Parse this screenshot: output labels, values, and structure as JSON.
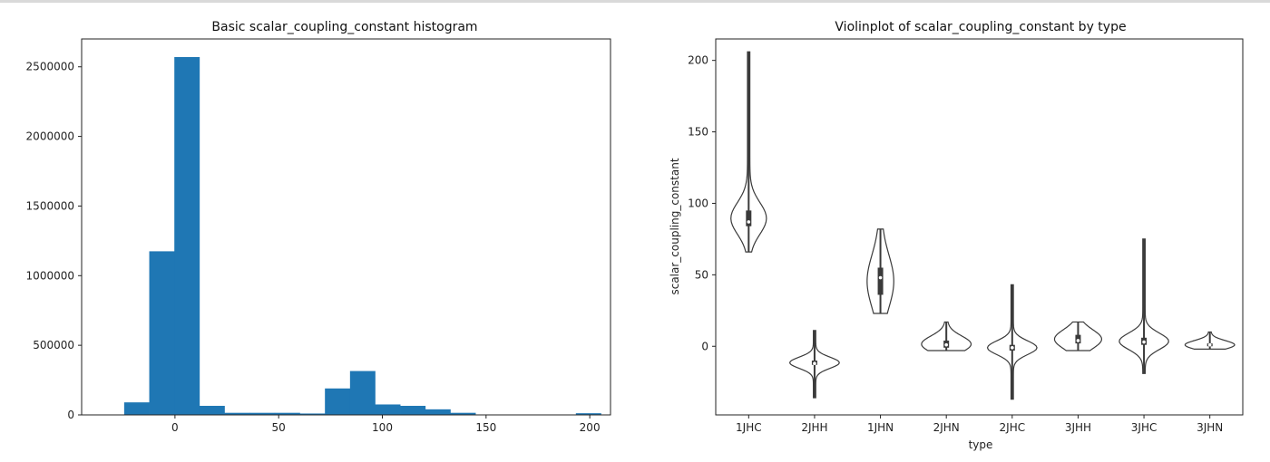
{
  "chart_data": [
    {
      "type": "bar",
      "title": "Basic scalar_coupling_constant histogram",
      "xlabel": "",
      "ylabel": "",
      "xlim": [
        -45,
        210
      ],
      "ylim": [
        0,
        2700000
      ],
      "xticks": [
        0,
        50,
        100,
        150,
        200
      ],
      "xtick_labels": [
        "0",
        "50",
        "100",
        "150",
        "200"
      ],
      "yticks": [
        0,
        500000,
        1000000,
        1500000,
        2000000,
        2500000
      ],
      "ytick_labels": [
        "0",
        "500000",
        "1000000",
        "1500000",
        "2000000",
        "2500000"
      ],
      "color": "#1f77b4",
      "bin_edges": [
        -24.5,
        -12.4,
        -0.3,
        11.8,
        23.9,
        36.0,
        48.1,
        60.2,
        72.3,
        84.4,
        96.5,
        108.6,
        120.7,
        132.8,
        144.9,
        157.0,
        169.1,
        181.2,
        193.3,
        205.4
      ],
      "values": [
        90000,
        1175000,
        2570000,
        65000,
        15000,
        15000,
        15000,
        10000,
        190000,
        315000,
        75000,
        65000,
        40000,
        15000,
        2000,
        2000,
        2000,
        2000,
        12000
      ]
    },
    {
      "type": "violin",
      "title": "Violinplot of scalar_coupling_constant by type",
      "xlabel": "type",
      "ylabel": "scalar_coupling_constant",
      "ylim": [
        -48,
        215
      ],
      "yticks": [
        0,
        50,
        100,
        150,
        200
      ],
      "ytick_labels": [
        "0",
        "50",
        "100",
        "150",
        "200"
      ],
      "categories": [
        "1JHC",
        "2JHH",
        "1JHN",
        "2JHN",
        "2JHC",
        "3JHH",
        "3JHC",
        "3JHN"
      ],
      "color": "#ffffff",
      "series": [
        {
          "category": "1JHC",
          "min": 66,
          "max": 206,
          "median": 87,
          "q1": 84,
          "q3": 95
        },
        {
          "category": "2JHH",
          "min": -36,
          "max": 11,
          "median": -12,
          "q1": -13,
          "q3": -10
        },
        {
          "category": "1JHN",
          "min": 23,
          "max": 82,
          "median": 48,
          "q1": 36,
          "q3": 55
        },
        {
          "category": "2JHN",
          "min": -3,
          "max": 17,
          "median": 1,
          "q1": -1,
          "q3": 4
        },
        {
          "category": "2JHC",
          "min": -37,
          "max": 43,
          "median": -1,
          "q1": -3,
          "q3": 1
        },
        {
          "category": "3JHH",
          "min": -3,
          "max": 17,
          "median": 4,
          "q1": 2,
          "q3": 8
        },
        {
          "category": "3JHC",
          "min": -19,
          "max": 75,
          "median": 3,
          "q1": 1,
          "q3": 6
        },
        {
          "category": "3JHN",
          "min": -2,
          "max": 10,
          "median": 1,
          "q1": 0,
          "q3": 2
        }
      ]
    }
  ]
}
